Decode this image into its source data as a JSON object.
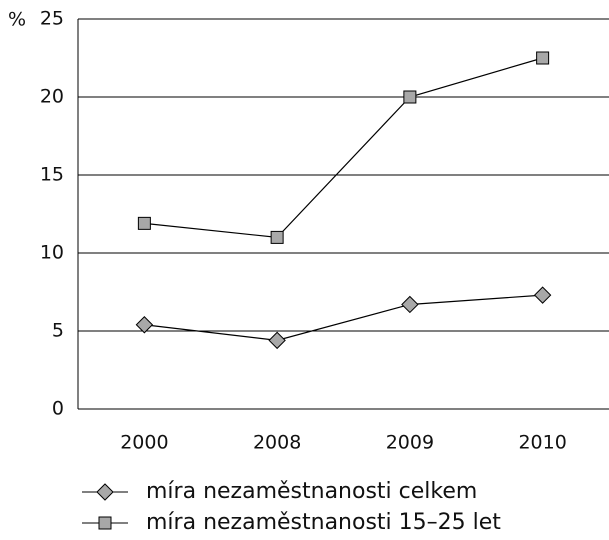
{
  "chart_data": {
    "type": "line",
    "y_label": "%",
    "categories": [
      "2000",
      "2008",
      "2009",
      "2010"
    ],
    "series": [
      {
        "name": "míra nezaměstnanosti celkem",
        "color": "#000000",
        "marker": "diamond",
        "values": [
          5.4,
          4.4,
          6.7,
          7.3
        ]
      },
      {
        "name": "míra nezaměstnanosti 15–25 let",
        "color": "#000000",
        "marker": "square",
        "values": [
          11.9,
          11.0,
          20.0,
          22.5
        ]
      }
    ],
    "ylim": [
      0,
      25
    ],
    "yticks": [
      0,
      5,
      10,
      15,
      20,
      25
    ],
    "grid": true
  }
}
